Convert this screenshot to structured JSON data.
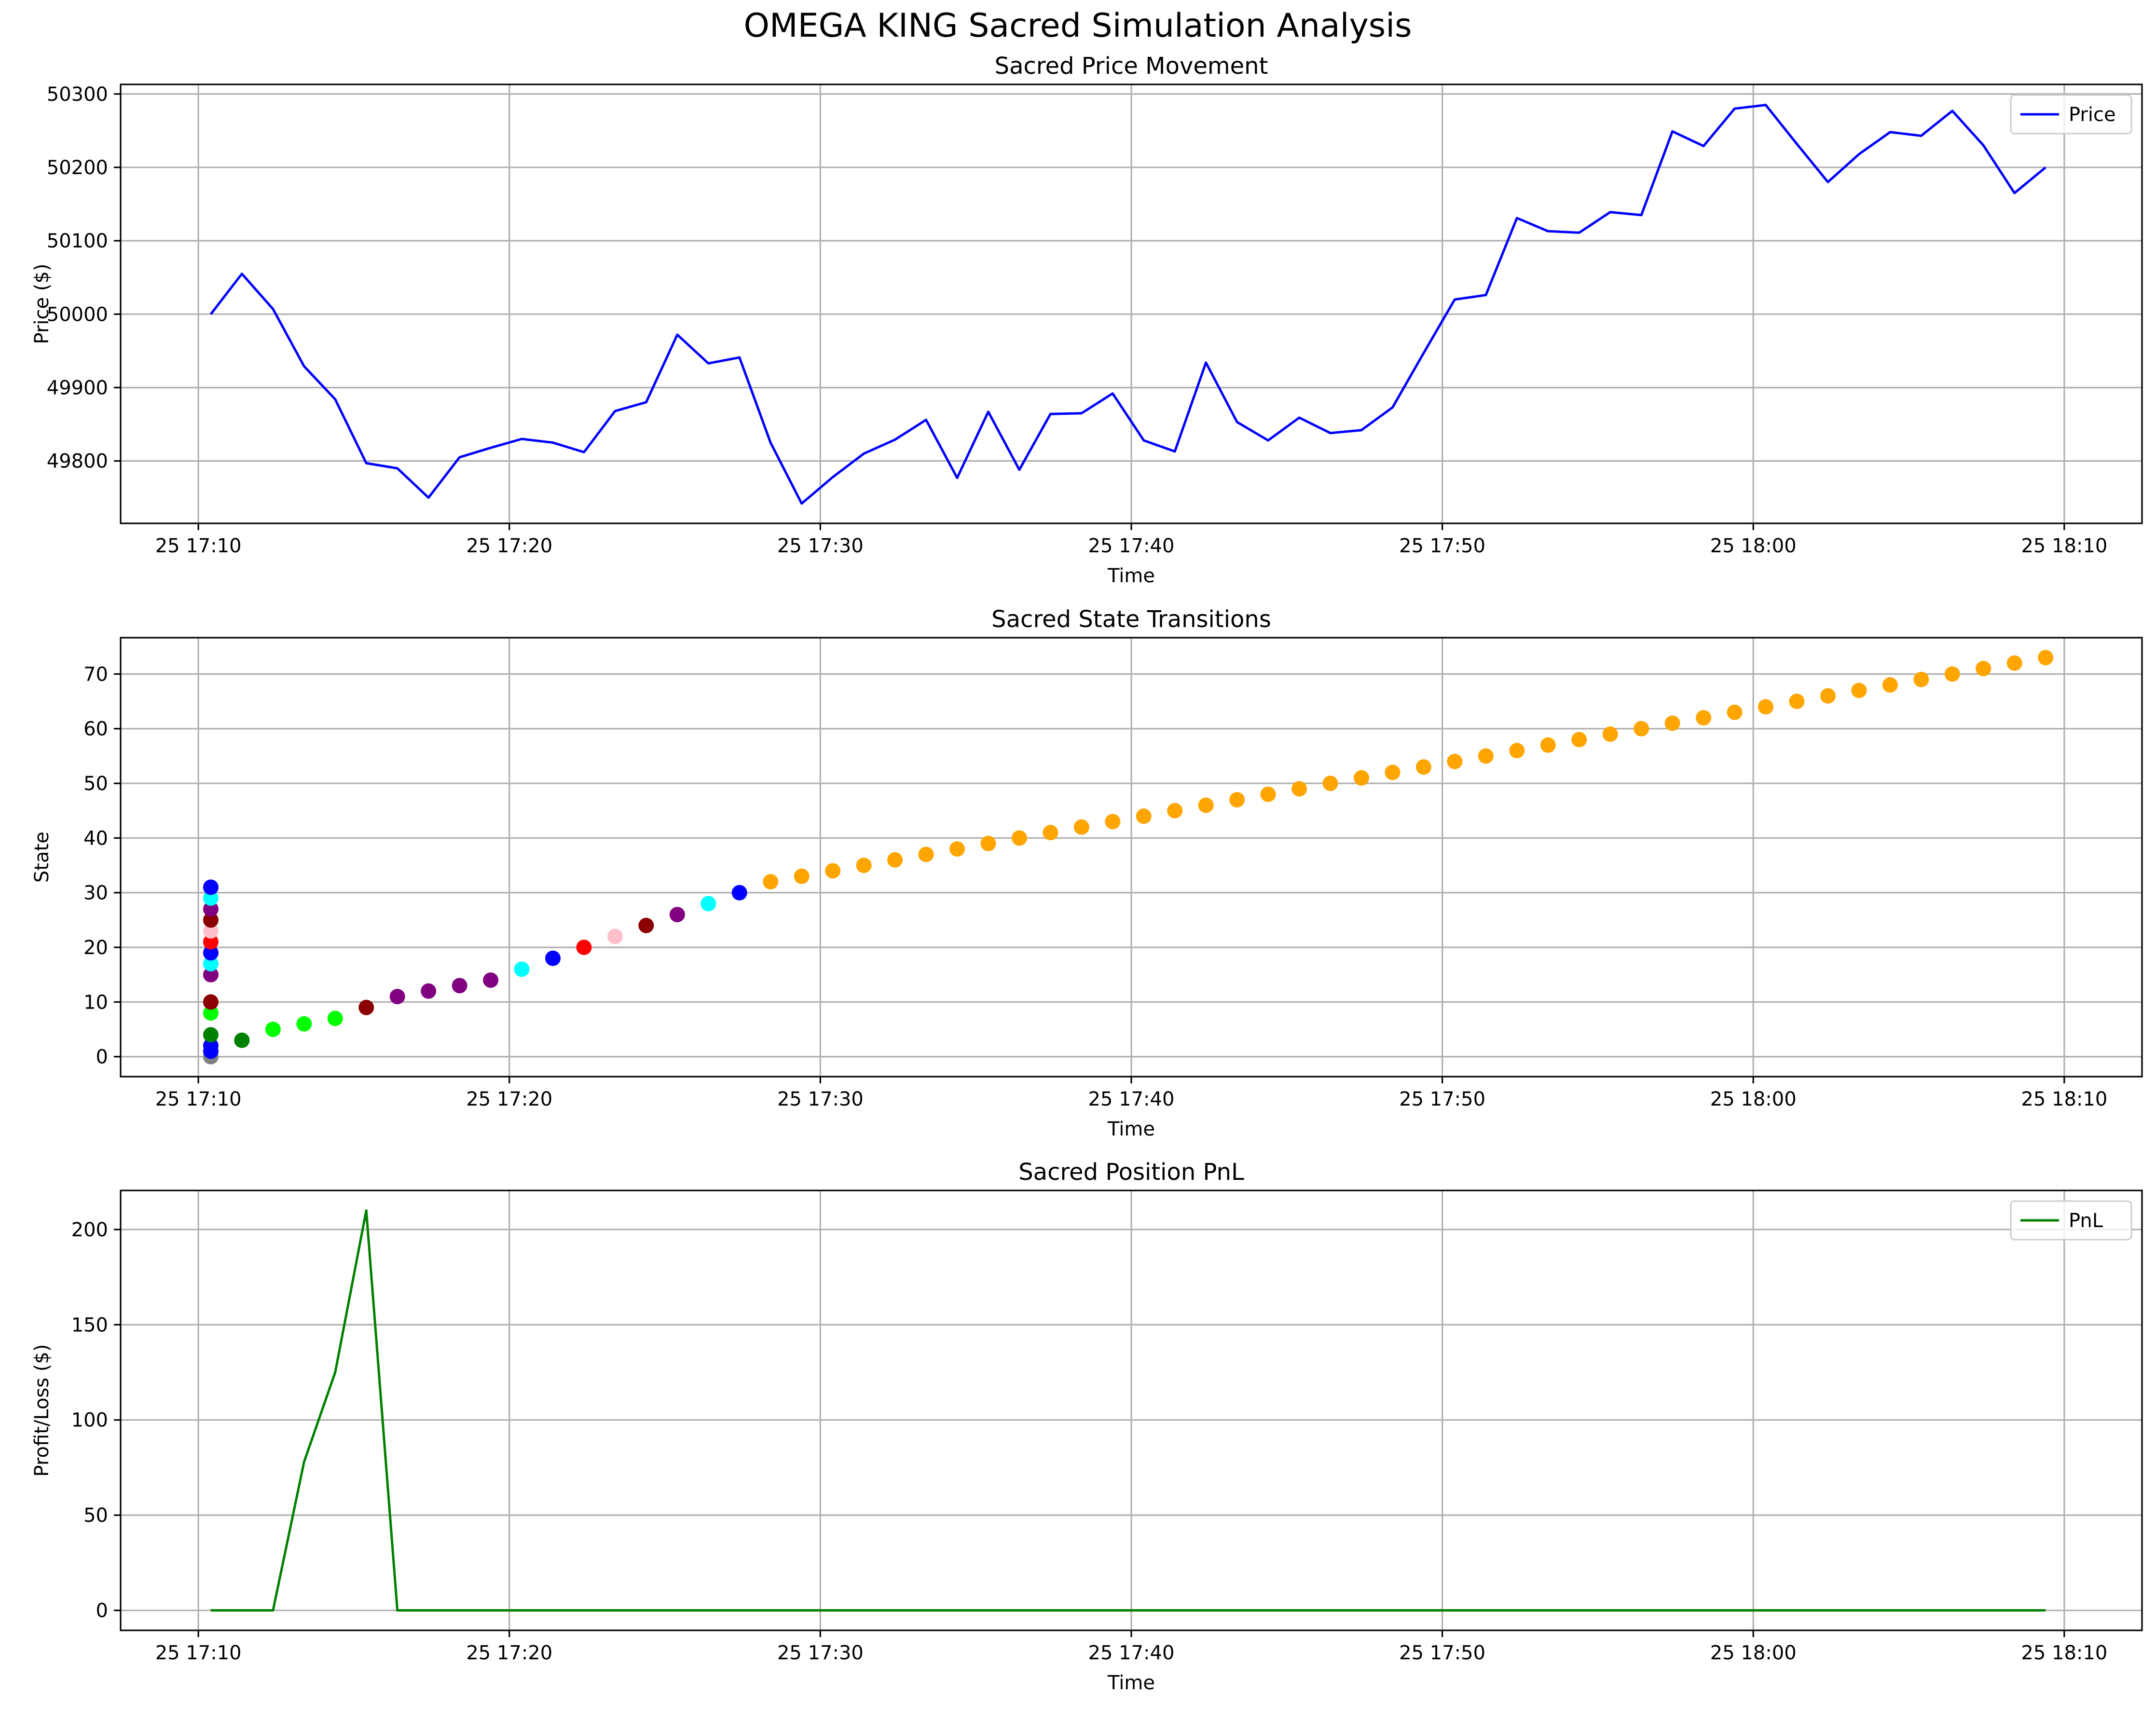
{
  "figure": {
    "suptitle": "OMEGA KING Sacred Simulation Analysis"
  },
  "chart_data": [
    {
      "type": "line",
      "title": "Sacred Price Movement",
      "xlabel": "Time",
      "ylabel": "Price ($)",
      "x_unit": "minutes after 25 17:10",
      "x_tick_labels": [
        "25 17:10",
        "25 17:20",
        "25 17:30",
        "25 17:40",
        "25 17:50",
        "25 18:00",
        "25 18:10"
      ],
      "x_ticks": [
        0,
        10,
        20,
        30,
        40,
        50,
        60
      ],
      "xlim": [
        -2.5,
        62.5
      ],
      "y_tick_labels": [
        "49800",
        "49900",
        "50000",
        "50100",
        "50200",
        "50300"
      ],
      "y_ticks": [
        49800,
        49900,
        50000,
        50100,
        50200,
        50300
      ],
      "ylim": [
        49715,
        50313
      ],
      "grid": true,
      "legend": "top-right",
      "series": [
        {
          "name": "Price",
          "color": "#0000ff",
          "x": [
            0.4,
            1.4,
            2.4,
            3.4,
            4.4,
            5.4,
            6.4,
            7.4,
            8.4,
            9.4,
            10.4,
            11.4,
            12.4,
            13.4,
            14.4,
            15.4,
            16.4,
            17.4,
            18.4,
            19.4,
            20.4,
            21.4,
            22.4,
            23.4,
            24.4,
            25.4,
            26.4,
            27.4,
            28.4,
            29.4,
            30.4,
            31.4,
            32.4,
            33.4,
            34.4,
            35.4,
            36.4,
            37.4,
            38.4,
            39.4,
            40.4,
            41.4,
            42.4,
            43.4,
            44.4,
            45.4,
            46.4,
            47.4,
            48.4,
            49.4,
            50.4,
            51.4,
            52.4,
            53.4,
            54.4,
            55.4,
            56.4,
            57.4,
            58.4,
            59.4
          ],
          "values": [
            50000,
            50055,
            50007,
            49929,
            49884,
            49797,
            49790,
            49750,
            49805,
            49818,
            49830,
            49825,
            49812,
            49868,
            49880,
            49972,
            49933,
            49941,
            49825,
            49742,
            49778,
            49810,
            49829,
            49856,
            49777,
            49867,
            49788,
            49864,
            49865,
            49892,
            49828,
            49813,
            49934,
            49853,
            49828,
            49859,
            49838,
            49842,
            49873,
            49947,
            50020,
            50026,
            50131,
            50113,
            50111,
            50139,
            50135,
            50249,
            50229,
            50280,
            50285,
            50232,
            50180,
            50218,
            50248,
            50243,
            50277,
            50230,
            50165,
            50200
          ]
        }
      ]
    },
    {
      "type": "scatter",
      "title": "Sacred State Transitions",
      "xlabel": "Time",
      "ylabel": "State",
      "x_unit": "minutes after 25 17:10",
      "x_tick_labels": [
        "25 17:10",
        "25 17:20",
        "25 17:30",
        "25 17:40",
        "25 17:50",
        "25 18:00",
        "25 18:10"
      ],
      "x_ticks": [
        0,
        10,
        20,
        30,
        40,
        50,
        60
      ],
      "xlim": [
        -2.5,
        62.5
      ],
      "y_tick_labels": [
        "0",
        "10",
        "20",
        "30",
        "40",
        "50",
        "60",
        "70"
      ],
      "y_ticks": [
        0,
        10,
        20,
        30,
        40,
        50,
        60,
        70
      ],
      "ylim": [
        -3.65,
        76.65
      ],
      "grid": true,
      "points": [
        {
          "x": 0.4,
          "y": 0,
          "color": "#808080"
        },
        {
          "x": 0.4,
          "y": 1,
          "color": "#0000ff"
        },
        {
          "x": 0.4,
          "y": 2,
          "color": "#0000ff"
        },
        {
          "x": 0.4,
          "y": 4,
          "color": "#008000"
        },
        {
          "x": 0.4,
          "y": 8,
          "color": "#00ff00"
        },
        {
          "x": 0.4,
          "y": 10,
          "color": "#8b0000"
        },
        {
          "x": 0.4,
          "y": 15,
          "color": "#800080"
        },
        {
          "x": 0.4,
          "y": 17,
          "color": "#00ffff"
        },
        {
          "x": 0.4,
          "y": 19,
          "color": "#0000ff"
        },
        {
          "x": 0.4,
          "y": 21,
          "color": "#ff0000"
        },
        {
          "x": 0.4,
          "y": 23,
          "color": "#ffc0cb"
        },
        {
          "x": 0.4,
          "y": 25,
          "color": "#8b0000"
        },
        {
          "x": 0.4,
          "y": 27,
          "color": "#800080"
        },
        {
          "x": 0.4,
          "y": 29,
          "color": "#00ffff"
        },
        {
          "x": 0.4,
          "y": 31,
          "color": "#0000ff"
        },
        {
          "x": 1.4,
          "y": 3,
          "color": "#008000"
        },
        {
          "x": 2.4,
          "y": 5,
          "color": "#00ff00"
        },
        {
          "x": 3.4,
          "y": 6,
          "color": "#00ff00"
        },
        {
          "x": 4.4,
          "y": 7,
          "color": "#00ff00"
        },
        {
          "x": 5.4,
          "y": 9,
          "color": "#8b0000"
        },
        {
          "x": 6.4,
          "y": 11,
          "color": "#800080"
        },
        {
          "x": 7.4,
          "y": 12,
          "color": "#800080"
        },
        {
          "x": 8.4,
          "y": 13,
          "color": "#800080"
        },
        {
          "x": 9.4,
          "y": 14,
          "color": "#800080"
        },
        {
          "x": 10.4,
          "y": 16,
          "color": "#00ffff"
        },
        {
          "x": 11.4,
          "y": 18,
          "color": "#0000ff"
        },
        {
          "x": 12.4,
          "y": 20,
          "color": "#ff0000"
        },
        {
          "x": 13.4,
          "y": 22,
          "color": "#ffc0cb"
        },
        {
          "x": 14.4,
          "y": 24,
          "color": "#8b0000"
        },
        {
          "x": 15.4,
          "y": 26,
          "color": "#800080"
        },
        {
          "x": 16.4,
          "y": 28,
          "color": "#00ffff"
        },
        {
          "x": 17.4,
          "y": 30,
          "color": "#0000ff"
        },
        {
          "x": 18.4,
          "y": 32,
          "color": "#ffa500"
        },
        {
          "x": 19.4,
          "y": 33,
          "color": "#ffa500"
        },
        {
          "x": 20.4,
          "y": 34,
          "color": "#ffa500"
        },
        {
          "x": 21.4,
          "y": 35,
          "color": "#ffa500"
        },
        {
          "x": 22.4,
          "y": 36,
          "color": "#ffa500"
        },
        {
          "x": 23.4,
          "y": 37,
          "color": "#ffa500"
        },
        {
          "x": 24.4,
          "y": 38,
          "color": "#ffa500"
        },
        {
          "x": 25.4,
          "y": 39,
          "color": "#ffa500"
        },
        {
          "x": 26.4,
          "y": 40,
          "color": "#ffa500"
        },
        {
          "x": 27.4,
          "y": 41,
          "color": "#ffa500"
        },
        {
          "x": 28.4,
          "y": 42,
          "color": "#ffa500"
        },
        {
          "x": 29.4,
          "y": 43,
          "color": "#ffa500"
        },
        {
          "x": 30.4,
          "y": 44,
          "color": "#ffa500"
        },
        {
          "x": 31.4,
          "y": 45,
          "color": "#ffa500"
        },
        {
          "x": 32.4,
          "y": 46,
          "color": "#ffa500"
        },
        {
          "x": 33.4,
          "y": 47,
          "color": "#ffa500"
        },
        {
          "x": 34.4,
          "y": 48,
          "color": "#ffa500"
        },
        {
          "x": 35.4,
          "y": 49,
          "color": "#ffa500"
        },
        {
          "x": 36.4,
          "y": 50,
          "color": "#ffa500"
        },
        {
          "x": 37.4,
          "y": 51,
          "color": "#ffa500"
        },
        {
          "x": 38.4,
          "y": 52,
          "color": "#ffa500"
        },
        {
          "x": 39.4,
          "y": 53,
          "color": "#ffa500"
        },
        {
          "x": 40.4,
          "y": 54,
          "color": "#ffa500"
        },
        {
          "x": 41.4,
          "y": 55,
          "color": "#ffa500"
        },
        {
          "x": 42.4,
          "y": 56,
          "color": "#ffa500"
        },
        {
          "x": 43.4,
          "y": 57,
          "color": "#ffa500"
        },
        {
          "x": 44.4,
          "y": 58,
          "color": "#ffa500"
        },
        {
          "x": 45.4,
          "y": 59,
          "color": "#ffa500"
        },
        {
          "x": 46.4,
          "y": 60,
          "color": "#ffa500"
        },
        {
          "x": 47.4,
          "y": 61,
          "color": "#ffa500"
        },
        {
          "x": 48.4,
          "y": 62,
          "color": "#ffa500"
        },
        {
          "x": 49.4,
          "y": 63,
          "color": "#ffa500"
        },
        {
          "x": 50.4,
          "y": 64,
          "color": "#ffa500"
        },
        {
          "x": 51.4,
          "y": 65,
          "color": "#ffa500"
        },
        {
          "x": 52.4,
          "y": 66,
          "color": "#ffa500"
        },
        {
          "x": 53.4,
          "y": 67,
          "color": "#ffa500"
        },
        {
          "x": 54.4,
          "y": 68,
          "color": "#ffa500"
        },
        {
          "x": 55.4,
          "y": 69,
          "color": "#ffa500"
        },
        {
          "x": 56.4,
          "y": 70,
          "color": "#ffa500"
        },
        {
          "x": 57.4,
          "y": 71,
          "color": "#ffa500"
        },
        {
          "x": 58.4,
          "y": 72,
          "color": "#ffa500"
        },
        {
          "x": 59.4,
          "y": 73,
          "color": "#ffa500"
        }
      ]
    },
    {
      "type": "line",
      "title": "Sacred Position PnL",
      "xlabel": "Time",
      "ylabel": "Profit/Loss ($)",
      "x_unit": "minutes after 25 17:10",
      "x_tick_labels": [
        "25 17:10",
        "25 17:20",
        "25 17:30",
        "25 17:40",
        "25 17:50",
        "25 18:00",
        "25 18:10"
      ],
      "x_ticks": [
        0,
        10,
        20,
        30,
        40,
        50,
        60
      ],
      "xlim": [
        -2.5,
        62.5
      ],
      "y_tick_labels": [
        "0",
        "50",
        "100",
        "150",
        "200"
      ],
      "y_ticks": [
        0,
        50,
        100,
        150,
        200
      ],
      "ylim": [
        -10.5,
        220.5
      ],
      "grid": true,
      "legend": "top-right",
      "series": [
        {
          "name": "PnL",
          "color": "#008000",
          "x": [
            0.4,
            1.4,
            2.4,
            3.4,
            4.4,
            5.4,
            6.4,
            59.4
          ],
          "values": [
            0,
            0,
            0,
            78,
            125,
            210,
            0,
            0
          ]
        }
      ]
    }
  ]
}
